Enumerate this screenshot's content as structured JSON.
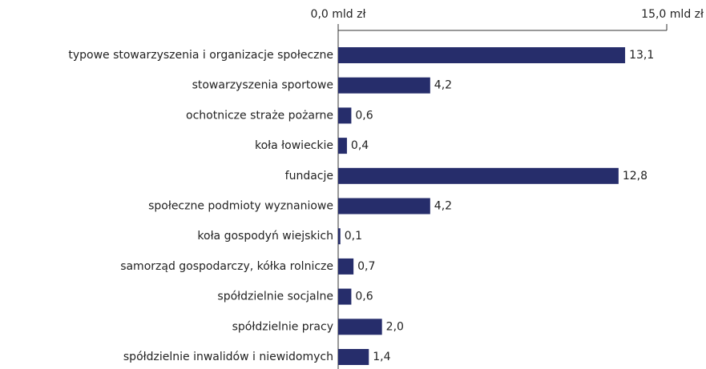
{
  "chart_data": {
    "type": "barh",
    "categories": [
      "typowe stowarzyszenia i organizacje społeczne",
      "stowarzyszenia sportowe",
      "ochotnicze straże pożarne",
      "koła łowieckie",
      "fundacje",
      "społeczne podmioty wyznaniowe",
      "koła gospodyń wiejskich",
      "samorząd gospodarczy, kółka rolnicze",
      "spółdzielnie socjalne",
      "spółdzielnie pracy",
      "spółdzielnie inwalidów i niewidomych"
    ],
    "values": [
      13.1,
      4.2,
      0.6,
      0.4,
      12.8,
      4.2,
      0.1,
      0.7,
      0.6,
      2.0,
      1.4
    ],
    "value_labels": [
      "13,1",
      "4,2",
      "0,6",
      "0,4",
      "12,8",
      "4,2",
      "0,1",
      "0,7",
      "0,6",
      "2,0",
      "1,4"
    ],
    "color": "#262d6b",
    "xlim": [
      0,
      15
    ],
    "xticks": [
      {
        "value": 0,
        "label": "0,0 mld zł"
      },
      {
        "value": 15,
        "label": "15,0 mld zł"
      }
    ]
  }
}
